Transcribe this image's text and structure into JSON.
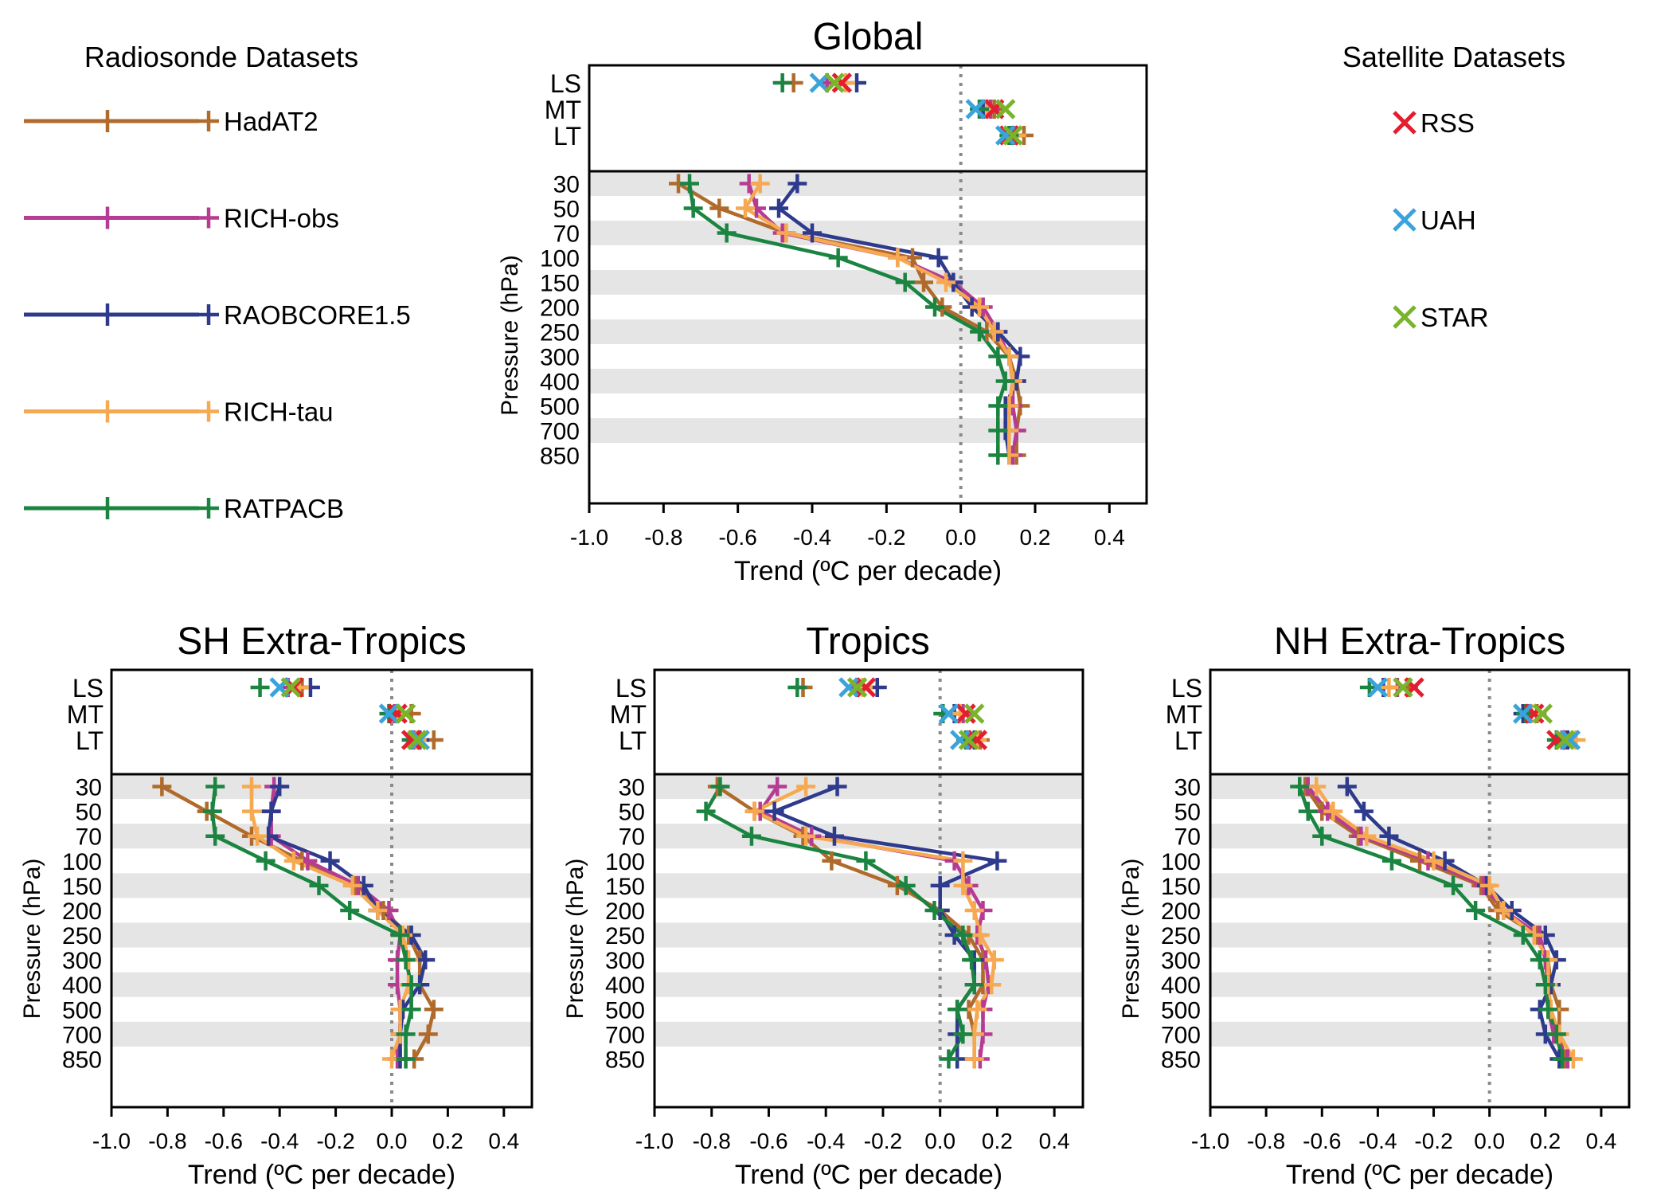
{
  "colors": {
    "HadAT2": "#B06A2B",
    "RICH-obs": "#B63B93",
    "RAOBCORE1.5": "#2E3A8C",
    "RICH-tau": "#F7A951",
    "RATPACB": "#1B8440",
    "RSS": "#E31E2E",
    "UAH": "#3BA3DB",
    "STAR": "#7AB42A",
    "band": "#E5E5E5",
    "zero_line": "#8A8A8A"
  },
  "legend": {
    "radiosonde_title": "Radiosonde Datasets",
    "radiosonde": [
      "HadAT2",
      "RICH-obs",
      "RAOBCORE1.5",
      "RICH-tau",
      "RATPACB"
    ],
    "satellite_title": "Satellite Datasets",
    "satellite": [
      "RSS",
      "UAH",
      "STAR"
    ]
  },
  "chart_data": [
    {
      "type": "line",
      "title": "Global",
      "xlabel": "Trend (ºC per decade)",
      "ylabel": "Pressure (hPa)",
      "xlim": [
        -1.0,
        0.5
      ],
      "xticks": [
        "-1.0",
        "-0.8",
        "-0.6",
        "-0.4",
        "-0.2",
        "0.0",
        "0.2",
        "0.4"
      ],
      "layers": [
        "LS",
        "MT",
        "LT"
      ],
      "levels": [
        "30",
        "50",
        "70",
        "100",
        "150",
        "200",
        "250",
        "300",
        "400",
        "500",
        "700",
        "850"
      ],
      "series": [
        {
          "name": "HadAT2",
          "values": [
            -0.76,
            -0.65,
            -0.47,
            -0.13,
            -0.1,
            -0.05,
            0.07,
            0.13,
            0.15,
            0.16,
            0.15,
            0.15
          ]
        },
        {
          "name": "RICH-obs",
          "values": [
            -0.57,
            -0.55,
            -0.48,
            -0.17,
            -0.02,
            0.06,
            0.1,
            0.13,
            0.14,
            0.14,
            0.15,
            0.14
          ]
        },
        {
          "name": "RAOBCORE1.5",
          "values": [
            -0.44,
            -0.49,
            -0.4,
            -0.06,
            -0.02,
            0.03,
            0.1,
            0.16,
            0.15,
            0.12,
            0.12,
            0.13
          ]
        },
        {
          "name": "RICH-tau",
          "values": [
            -0.54,
            -0.58,
            -0.47,
            -0.17,
            -0.04,
            0.05,
            0.09,
            0.13,
            0.14,
            0.13,
            0.13,
            0.13
          ]
        },
        {
          "name": "RATPACB",
          "values": [
            -0.73,
            -0.72,
            -0.63,
            -0.33,
            -0.15,
            -0.07,
            0.05,
            0.1,
            0.12,
            0.1,
            0.1,
            0.1
          ]
        }
      ],
      "layer_points": {
        "HadAT2": [
          -0.45,
          0.09,
          0.17
        ],
        "RICH-obs": [
          -0.36,
          0.08,
          0.14
        ],
        "RAOBCORE1.5": [
          -0.28,
          0.06,
          0.14
        ],
        "RICH-tau": [
          -0.31,
          0.07,
          0.15
        ],
        "RATPACB": [
          -0.48,
          0.05,
          0.13
        ],
        "RSS": [
          -0.32,
          0.09,
          0.13
        ],
        "UAH": [
          -0.38,
          0.04,
          0.12
        ],
        "STAR": [
          -0.34,
          0.12,
          0.14
        ]
      }
    },
    {
      "type": "line",
      "title": "SH Extra-Tropics",
      "xlabel": "Trend (ºC per decade)",
      "ylabel": "Pressure (hPa)",
      "xlim": [
        -1.0,
        0.5
      ],
      "xticks": [
        "-1.0",
        "-0.8",
        "-0.6",
        "-0.4",
        "-0.2",
        "0.0",
        "0.2",
        "0.4"
      ],
      "layers": [
        "LS",
        "MT",
        "LT"
      ],
      "levels": [
        "30",
        "50",
        "70",
        "100",
        "150",
        "200",
        "250",
        "300",
        "400",
        "500",
        "700",
        "850"
      ],
      "series": [
        {
          "name": "HadAT2",
          "values": [
            -0.82,
            -0.66,
            -0.5,
            -0.32,
            -0.13,
            -0.03,
            0.06,
            0.1,
            0.1,
            0.15,
            0.13,
            0.08
          ]
        },
        {
          "name": "RICH-obs",
          "values": [
            -0.42,
            -0.43,
            -0.43,
            -0.3,
            -0.12,
            -0.01,
            0.03,
            0.02,
            0.02,
            0.03,
            0.03,
            0.02
          ]
        },
        {
          "name": "RAOBCORE1.5",
          "values": [
            -0.4,
            -0.43,
            -0.44,
            -0.22,
            -0.1,
            -0.05,
            0.07,
            0.12,
            0.1,
            0.04,
            0.03,
            0.03
          ]
        },
        {
          "name": "RICH-tau",
          "values": [
            -0.5,
            -0.5,
            -0.48,
            -0.35,
            -0.14,
            -0.05,
            0.04,
            0.06,
            0.06,
            0.03,
            0.03,
            0.0
          ]
        },
        {
          "name": "RATPACB",
          "values": [
            -0.63,
            -0.64,
            -0.63,
            -0.45,
            -0.26,
            -0.15,
            0.03,
            0.05,
            0.07,
            0.07,
            0.05,
            0.05
          ]
        }
      ],
      "layer_points": {
        "HadAT2": [
          -0.32,
          0.07,
          0.15
        ],
        "RICH-obs": [
          -0.37,
          0.01,
          0.08
        ],
        "RAOBCORE1.5": [
          -0.29,
          0.02,
          0.1
        ],
        "RICH-tau": [
          -0.33,
          0.02,
          0.09
        ],
        "RATPACB": [
          -0.47,
          -0.01,
          0.07
        ],
        "RSS": [
          -0.35,
          0.02,
          0.07
        ],
        "UAH": [
          -0.4,
          -0.01,
          0.1
        ],
        "STAR": [
          -0.36,
          0.05,
          0.09
        ]
      }
    },
    {
      "type": "line",
      "title": "Tropics",
      "xlabel": "Trend (ºC per decade)",
      "ylabel": "Pressure (hPa)",
      "xlim": [
        -1.0,
        0.5
      ],
      "xticks": [
        "-1.0",
        "-0.8",
        "-0.6",
        "-0.4",
        "-0.2",
        "0.0",
        "0.2",
        "0.4"
      ],
      "layers": [
        "LS",
        "MT",
        "LT"
      ],
      "levels": [
        "30",
        "50",
        "70",
        "100",
        "150",
        "200",
        "250",
        "300",
        "400",
        "500",
        "700",
        "850"
      ],
      "series": [
        {
          "name": "HadAT2",
          "values": [
            -0.78,
            -0.65,
            -0.48,
            -0.38,
            -0.15,
            0.0,
            0.1,
            0.15,
            0.15,
            0.1,
            0.12,
            0.12
          ]
        },
        {
          "name": "RICH-obs",
          "values": [
            -0.57,
            -0.63,
            -0.45,
            0.05,
            0.1,
            0.15,
            0.13,
            0.16,
            0.17,
            0.15,
            0.15,
            0.14
          ]
        },
        {
          "name": "RAOBCORE1.5",
          "values": [
            -0.36,
            -0.58,
            -0.37,
            0.2,
            0.0,
            0.0,
            0.05,
            0.12,
            0.12,
            0.06,
            0.06,
            0.06
          ]
        },
        {
          "name": "RICH-tau",
          "values": [
            -0.47,
            -0.65,
            -0.47,
            0.08,
            0.08,
            0.12,
            0.14,
            0.19,
            0.18,
            0.13,
            0.12,
            0.12
          ]
        },
        {
          "name": "RATPACB",
          "values": [
            -0.77,
            -0.82,
            -0.66,
            -0.26,
            -0.12,
            -0.02,
            0.08,
            0.11,
            0.12,
            0.06,
            0.08,
            0.03
          ]
        }
      ],
      "layer_points": {
        "HadAT2": [
          -0.48,
          0.08,
          0.14
        ],
        "RICH-obs": [
          -0.29,
          0.08,
          0.1
        ],
        "RAOBCORE1.5": [
          -0.22,
          0.05,
          0.12
        ],
        "RICH-tau": [
          -0.27,
          0.07,
          0.13
        ],
        "RATPACB": [
          -0.5,
          0.01,
          0.09
        ],
        "RSS": [
          -0.26,
          0.09,
          0.13
        ],
        "UAH": [
          -0.32,
          0.03,
          0.07
        ],
        "STAR": [
          -0.29,
          0.12,
          0.1
        ]
      }
    },
    {
      "type": "line",
      "title": "NH Extra-Tropics",
      "xlabel": "Trend (ºC per decade)",
      "ylabel": "Pressure (hPa)",
      "xlim": [
        -1.0,
        0.5
      ],
      "xticks": [
        "-1.0",
        "-0.8",
        "-0.6",
        "-0.4",
        "-0.2",
        "0.0",
        "0.2",
        "0.4"
      ],
      "layers": [
        "LS",
        "MT",
        "LT"
      ],
      "levels": [
        "30",
        "50",
        "70",
        "100",
        "150",
        "200",
        "250",
        "300",
        "400",
        "500",
        "700",
        "850"
      ],
      "series": [
        {
          "name": "HadAT2",
          "values": [
            -0.66,
            -0.6,
            -0.47,
            -0.25,
            -0.03,
            0.03,
            0.17,
            0.21,
            0.22,
            0.25,
            0.25,
            0.27
          ]
        },
        {
          "name": "RICH-obs",
          "values": [
            -0.65,
            -0.58,
            -0.46,
            -0.22,
            -0.02,
            0.05,
            0.18,
            0.2,
            0.21,
            0.21,
            0.23,
            0.28
          ]
        },
        {
          "name": "RAOBCORE1.5",
          "values": [
            -0.51,
            -0.45,
            -0.36,
            -0.16,
            -0.01,
            0.08,
            0.2,
            0.24,
            0.22,
            0.18,
            0.2,
            0.25
          ]
        },
        {
          "name": "RICH-tau",
          "values": [
            -0.62,
            -0.56,
            -0.44,
            -0.2,
            0.0,
            0.05,
            0.16,
            0.21,
            0.21,
            0.22,
            0.25,
            0.3
          ]
        },
        {
          "name": "RATPACB",
          "values": [
            -0.68,
            -0.65,
            -0.6,
            -0.35,
            -0.13,
            -0.05,
            0.12,
            0.18,
            0.2,
            0.21,
            0.24,
            0.26
          ]
        }
      ],
      "layer_points": {
        "HadAT2": [
          -0.29,
          0.17,
          0.27
        ],
        "RICH-obs": [
          -0.33,
          0.14,
          0.26
        ],
        "RAOBCORE1.5": [
          -0.38,
          0.12,
          0.28
        ],
        "RICH-tau": [
          -0.36,
          0.15,
          0.31
        ],
        "RATPACB": [
          -0.43,
          0.13,
          0.24
        ],
        "RSS": [
          -0.27,
          0.16,
          0.24
        ],
        "UAH": [
          -0.4,
          0.12,
          0.29
        ],
        "STAR": [
          -0.31,
          0.19,
          0.27
        ]
      }
    }
  ]
}
